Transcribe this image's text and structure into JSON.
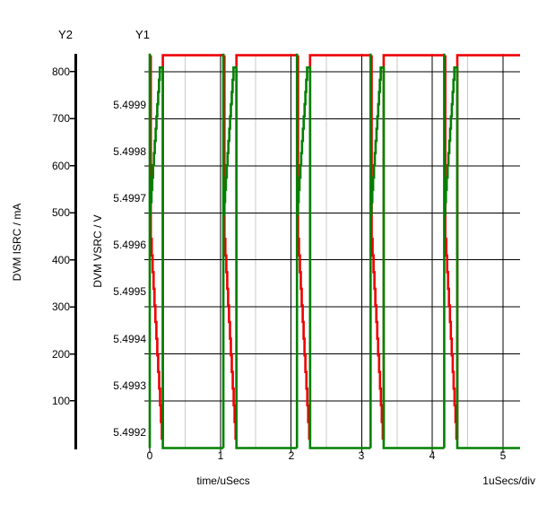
{
  "chart_data": {
    "type": "line",
    "title": "",
    "x": {
      "label": "time/uSecs",
      "per_div": "1uSecs/div",
      "ticks": [
        0,
        1,
        2,
        3,
        4,
        5
      ],
      "range": [
        0,
        5.24
      ]
    },
    "y1": {
      "header": "Y1",
      "label": "DVM VSRC / V",
      "tick_labels": [
        "5.4999",
        "5.4998",
        "5.4997",
        "5.4996",
        "5.4995",
        "5.4994",
        "5.4993",
        "5.4992"
      ],
      "range": [
        5.49914,
        5.50002
      ]
    },
    "y2": {
      "header": "Y2",
      "label": "DVM ISRC / mA",
      "tick_labels": [
        "800",
        "700",
        "600",
        "500",
        "400",
        "300",
        "200",
        "100"
      ],
      "range": [
        0,
        838
      ]
    },
    "grid": {
      "vertical_major": [
        0,
        1,
        2,
        3,
        4,
        5
      ],
      "vertical_minor": [
        0.5,
        1.5,
        2.5,
        3.5,
        4.5
      ],
      "horizontal_at_y2_mA": [
        800,
        700,
        600,
        500,
        400,
        300,
        200,
        100
      ],
      "major_color": "#000000",
      "minor_color": "#c9c9c9"
    },
    "series": [
      {
        "name": "DVM VSRC",
        "axis": "y1",
        "color": "#008000",
        "waveform": "burst",
        "burst_starts": [
          0,
          1.042,
          2.084,
          3.126,
          4.168
        ],
        "burst_duration": 0.185,
        "baseline_V": 5.4992,
        "ramp_from_V": 5.49964,
        "ramp_to_V": 5.49998,
        "spike_top_V": 5.50001
      },
      {
        "name": "DVM ISRC",
        "axis": "y2",
        "color": "#ee0000",
        "waveform": "burst",
        "burst_starts": [
          0,
          1.042,
          2.084,
          3.126,
          4.168
        ],
        "burst_duration": 0.185,
        "drop_delay": 0.015,
        "idle_mA": 835,
        "ramp_from_mA": 480,
        "ramp_to_mA": 20
      }
    ]
  }
}
